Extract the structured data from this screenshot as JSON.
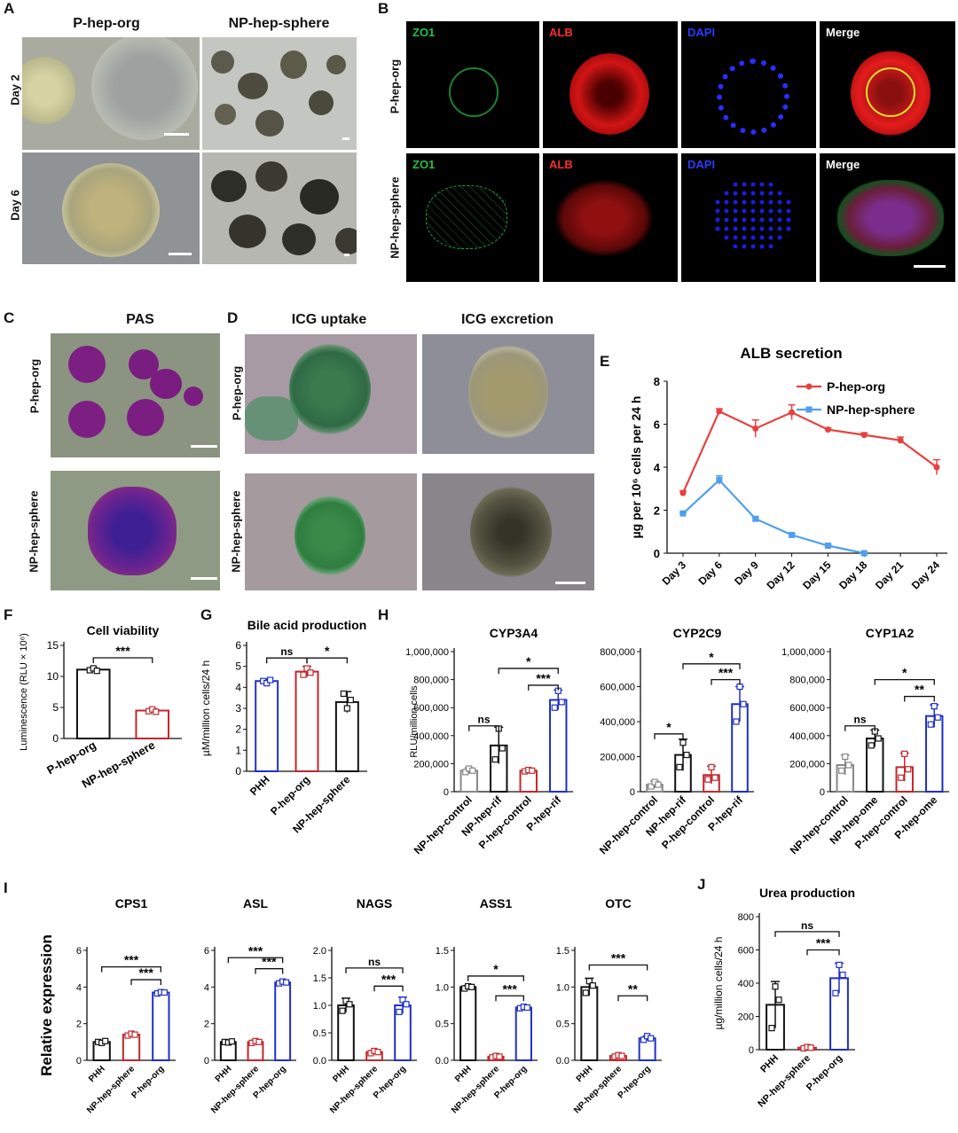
{
  "panels": {
    "A": {
      "letter": "A",
      "col_titles": [
        "P-hep-org",
        "NP-hep-sphere"
      ],
      "row_labels": [
        "Day 2",
        "Day 6"
      ]
    },
    "B": {
      "letter": "B",
      "channels": [
        "ZO1",
        "ALB",
        "DAPI",
        "Merge"
      ],
      "row_labels": [
        "P-hep-org",
        "NP-hep-sphere"
      ],
      "channel_colors": [
        "#22c24a",
        "#ff2a2a",
        "#2a3cff",
        "#ffffff"
      ]
    },
    "C": {
      "letter": "C",
      "title": "PAS",
      "row_labels": [
        "P-hep-org",
        "NP-hep-sphere"
      ]
    },
    "D": {
      "letter": "D",
      "col_titles": [
        "ICG uptake",
        "ICG excretion"
      ],
      "row_labels": [
        "P-hep-org",
        "NP-hep-sphere"
      ]
    },
    "E": {
      "letter": "E"
    },
    "F": {
      "letter": "F"
    },
    "G": {
      "letter": "G"
    },
    "H": {
      "letter": "H"
    },
    "I": {
      "letter": "I"
    },
    "J": {
      "letter": "J"
    }
  },
  "chart_data": [
    {
      "id": "E",
      "type": "line",
      "title": "ALB secretion",
      "ylabel": "µg per 10⁶ cells per 24 h",
      "ylim": [
        0,
        8
      ],
      "yticks": [
        "0",
        "2",
        "4",
        "6",
        "8"
      ],
      "categories": [
        "Day 3",
        "Day 6",
        "Day 9",
        "Day 12",
        "Day 15",
        "Day 18",
        "Day 21",
        "Day 24"
      ],
      "series": [
        {
          "name": "P-hep-org",
          "color": "#e8403f",
          "values": [
            2.8,
            6.6,
            5.8,
            6.55,
            5.75,
            5.5,
            5.25,
            4.0
          ],
          "err": [
            0.1,
            0.12,
            0.4,
            0.35,
            0.08,
            0.1,
            0.15,
            0.35
          ]
        },
        {
          "name": "NP-hep-sphere",
          "color": "#4f9fee",
          "values": [
            1.85,
            3.4,
            1.6,
            0.85,
            0.35,
            0.0,
            null,
            null
          ],
          "err": [
            0.05,
            0.2,
            0.08,
            0.05,
            0.05,
            0.02,
            null,
            null
          ]
        }
      ],
      "legend": "top-right"
    },
    {
      "id": "F",
      "type": "bar",
      "title": "Cell viability",
      "ylabel": "Luminescence (RLU × 10⁶)",
      "ylim": [
        0,
        15
      ],
      "yticks": [
        "0",
        "5",
        "10",
        "15"
      ],
      "categories": [
        "P-hep-org",
        "NP-hep-sphere"
      ],
      "values": [
        11.1,
        4.5
      ],
      "err": [
        0.3,
        0.3
      ],
      "colors": [
        "#111111",
        "#c0282d"
      ],
      "points": [
        [
          11.0,
          11.3,
          10.9
        ],
        [
          4.4,
          4.7,
          4.3
        ]
      ],
      "sig": [
        {
          "from": 0,
          "to": 1,
          "label": "***",
          "level": 13.0
        }
      ]
    },
    {
      "id": "G",
      "type": "bar",
      "title": "Bile acid production",
      "ylabel": "µM/million cells/24 h",
      "ylim": [
        0,
        6
      ],
      "yticks": [
        "0",
        "1",
        "2",
        "3",
        "4",
        "5",
        "6"
      ],
      "categories": [
        "PHH",
        "P-hep-org",
        "NP-hep-sphere"
      ],
      "values": [
        4.3,
        4.75,
        3.3
      ],
      "err": [
        0.1,
        0.25,
        0.5
      ],
      "colors": [
        "#1f2fc9",
        "#c0282d",
        "#111111"
      ],
      "points": [
        [
          4.3,
          4.2,
          4.35
        ],
        [
          4.6,
          4.9,
          4.7
        ],
        [
          3.7,
          3.0,
          3.4
        ]
      ],
      "sig": [
        {
          "from": 0,
          "to": 1,
          "label": "ns",
          "level": 5.4
        },
        {
          "from": 1,
          "to": 2,
          "label": "*",
          "level": 5.4
        }
      ]
    },
    {
      "id": "H1",
      "type": "bar",
      "title": "CYP3A4",
      "ylabel": "RLU/million cells",
      "ylim": [
        0,
        1000000
      ],
      "yticks": [
        "0",
        "200,000",
        "400,000",
        "600,000",
        "800,000",
        "1,000,000"
      ],
      "categories": [
        "NP-hep-control",
        "NP-hep-rif",
        "P-hep-control",
        "P-hep-rif"
      ],
      "values": [
        150000,
        330000,
        150000,
        655000
      ],
      "err": [
        20000,
        130000,
        10000,
        70000
      ],
      "colors": [
        "#888888",
        "#111111",
        "#c0282d",
        "#1f2fc9"
      ],
      "points": [
        [
          140000,
          165000,
          150000
        ],
        [
          230000,
          450000,
          310000
        ],
        [
          145000,
          155000,
          150000
        ],
        [
          600000,
          720000,
          640000
        ]
      ],
      "sig": [
        {
          "from": 0,
          "to": 1,
          "label": "ns",
          "level": 470000
        },
        {
          "from": 2,
          "to": 3,
          "label": "***",
          "level": 760000
        },
        {
          "from": 1,
          "to": 3,
          "label": "*",
          "level": 880000
        }
      ]
    },
    {
      "id": "H2",
      "type": "bar",
      "title": "CYP2C9",
      "ylabel": "",
      "ylim": [
        0,
        800000
      ],
      "yticks": [
        "0",
        "200,000",
        "400,000",
        "600,000",
        "800,000"
      ],
      "categories": [
        "NP-hep-control",
        "NP-hep-rif",
        "P-hep-control",
        "P-hep-rif"
      ],
      "values": [
        40000,
        210000,
        95000,
        500000
      ],
      "err": [
        20000,
        90000,
        50000,
        100000
      ],
      "colors": [
        "#888888",
        "#111111",
        "#c0282d",
        "#1f2fc9"
      ],
      "points": [
        [
          30000,
          55000,
          40000
        ],
        [
          140000,
          280000,
          210000
        ],
        [
          70000,
          140000,
          80000
        ],
        [
          400000,
          600000,
          500000
        ]
      ],
      "sig": [
        {
          "from": 0,
          "to": 1,
          "label": "*",
          "level": 330000
        },
        {
          "from": 2,
          "to": 3,
          "label": "***",
          "level": 640000
        },
        {
          "from": 1,
          "to": 3,
          "label": "*",
          "level": 730000
        }
      ]
    },
    {
      "id": "H3",
      "type": "bar",
      "title": "CYP1A2",
      "ylabel": "",
      "ylim": [
        0,
        1000000
      ],
      "yticks": [
        "0",
        "200,000",
        "400,000",
        "600,000",
        "800,000",
        "1,000,000"
      ],
      "categories": [
        "NP-hep-control",
        "NP-hep-ome",
        "P-hep-control",
        "P-hep-ome"
      ],
      "values": [
        190000,
        380000,
        175000,
        540000
      ],
      "err": [
        70000,
        60000,
        100000,
        80000
      ],
      "colors": [
        "#888888",
        "#111111",
        "#c0282d",
        "#1f2fc9"
      ],
      "points": [
        [
          150000,
          250000,
          190000
        ],
        [
          330000,
          430000,
          380000
        ],
        [
          100000,
          270000,
          160000
        ],
        [
          480000,
          610000,
          530000
        ]
      ],
      "sig": [
        {
          "from": 0,
          "to": 1,
          "label": "ns",
          "level": 470000
        },
        {
          "from": 2,
          "to": 3,
          "label": "**",
          "level": 680000
        },
        {
          "from": 1,
          "to": 3,
          "label": "*",
          "level": 800000
        }
      ]
    },
    {
      "id": "I1",
      "type": "bar",
      "title": "CPS1",
      "ylabel": "Relative expression",
      "ylim": [
        0,
        6
      ],
      "yticks": [
        "0",
        "2",
        "4",
        "6"
      ],
      "categories": [
        "PHH",
        "NP-hep-sphere",
        "P-hep-org"
      ],
      "values": [
        1.0,
        1.4,
        3.7
      ],
      "err": [
        0.05,
        0.07,
        0.05
      ],
      "colors": [
        "#111111",
        "#c0282d",
        "#1f2fc9"
      ],
      "points": [
        [
          1.0,
          0.95,
          1.05
        ],
        [
          1.35,
          1.45,
          1.4
        ],
        [
          3.65,
          3.72,
          3.7
        ]
      ],
      "sig": [
        {
          "from": 1,
          "to": 2,
          "label": "***",
          "level": 4.4
        },
        {
          "from": 0,
          "to": 2,
          "label": "***",
          "level": 5.1
        }
      ]
    },
    {
      "id": "I2",
      "type": "bar",
      "title": "ASL",
      "ylabel": "",
      "ylim": [
        0,
        6
      ],
      "yticks": [
        "0",
        "2",
        "4",
        "6"
      ],
      "categories": [
        "PHH",
        "NP-hep-sphere",
        "P-hep-org"
      ],
      "values": [
        1.0,
        1.0,
        4.25
      ],
      "err": [
        0.05,
        0.1,
        0.1
      ],
      "colors": [
        "#111111",
        "#c0282d",
        "#1f2fc9"
      ],
      "points": [
        [
          1.0,
          0.97,
          1.03
        ],
        [
          0.95,
          1.05,
          1.0
        ],
        [
          4.2,
          4.3,
          4.25
        ]
      ],
      "sig": [
        {
          "from": 1,
          "to": 2,
          "label": "***",
          "level": 5.0
        },
        {
          "from": 0,
          "to": 2,
          "label": "***",
          "level": 5.6
        }
      ]
    },
    {
      "id": "I3",
      "type": "bar",
      "title": "NAGS",
      "ylabel": "",
      "ylim": [
        0,
        2.0
      ],
      "yticks": [
        "0.0",
        "0.5",
        "1.0",
        "1.5",
        "2.0"
      ],
      "categories": [
        "PHH",
        "NP-hep-sphere",
        "P-hep-org"
      ],
      "values": [
        1.0,
        0.15,
        1.0
      ],
      "err": [
        0.13,
        0.03,
        0.15
      ],
      "colors": [
        "#111111",
        "#c0282d",
        "#1f2fc9"
      ],
      "points": [
        [
          0.9,
          1.08,
          1.02
        ],
        [
          0.13,
          0.17,
          0.15
        ],
        [
          0.88,
          1.1,
          1.02
        ]
      ],
      "sig": [
        {
          "from": 1,
          "to": 2,
          "label": "***",
          "level": 1.35
        },
        {
          "from": 0,
          "to": 2,
          "label": "ns",
          "level": 1.68
        }
      ]
    },
    {
      "id": "I4",
      "type": "bar",
      "title": "ASS1",
      "ylabel": "",
      "ylim": [
        0,
        1.5
      ],
      "yticks": [
        "0.0",
        "0.5",
        "1.0",
        "1.5"
      ],
      "categories": [
        "PHH",
        "NP-hep-sphere",
        "P-hep-org"
      ],
      "values": [
        1.0,
        0.05,
        0.72
      ],
      "err": [
        0.02,
        0.01,
        0.01
      ],
      "colors": [
        "#111111",
        "#c0282d",
        "#1f2fc9"
      ],
      "points": [
        [
          0.98,
          1.01,
          1.0
        ],
        [
          0.04,
          0.06,
          0.05
        ],
        [
          0.71,
          0.73,
          0.72
        ]
      ],
      "sig": [
        {
          "from": 1,
          "to": 2,
          "label": "***",
          "level": 0.88
        },
        {
          "from": 0,
          "to": 2,
          "label": "*",
          "level": 1.15
        }
      ]
    },
    {
      "id": "I5",
      "type": "bar",
      "title": "OTC",
      "ylabel": "",
      "ylim": [
        0,
        1.5
      ],
      "yticks": [
        "0.0",
        "0.5",
        "1.0",
        "1.5"
      ],
      "categories": [
        "PHH",
        "NP-hep-sphere",
        "P-hep-org"
      ],
      "values": [
        1.0,
        0.06,
        0.3
      ],
      "err": [
        0.12,
        0.01,
        0.03
      ],
      "colors": [
        "#111111",
        "#c0282d",
        "#1f2fc9"
      ],
      "points": [
        [
          0.92,
          1.08,
          1.02
        ],
        [
          0.05,
          0.07,
          0.06
        ],
        [
          0.28,
          0.33,
          0.3
        ]
      ],
      "sig": [
        {
          "from": 1,
          "to": 2,
          "label": "**",
          "level": 0.88
        },
        {
          "from": 0,
          "to": 2,
          "label": "***",
          "level": 1.3
        }
      ]
    },
    {
      "id": "J",
      "type": "bar",
      "title": "Urea production",
      "ylabel": "µg/million cells/24 h",
      "ylim": [
        0,
        800
      ],
      "yticks": [
        "0",
        "200",
        "400",
        "600",
        "800"
      ],
      "categories": [
        "PHH",
        "NP-hep-sphere",
        "P-hep-org"
      ],
      "values": [
        270,
        12,
        430
      ],
      "err": [
        140,
        5,
        90
      ],
      "colors": [
        "#111111",
        "#c0282d",
        "#1f2fc9"
      ],
      "points": [
        [
          130,
          380,
          300
        ],
        [
          8,
          16,
          12
        ],
        [
          340,
          510,
          450
        ]
      ],
      "sig": [
        {
          "from": 1,
          "to": 2,
          "label": "***",
          "level": 600
        },
        {
          "from": 0,
          "to": 2,
          "label": "ns",
          "level": 710
        }
      ]
    }
  ]
}
